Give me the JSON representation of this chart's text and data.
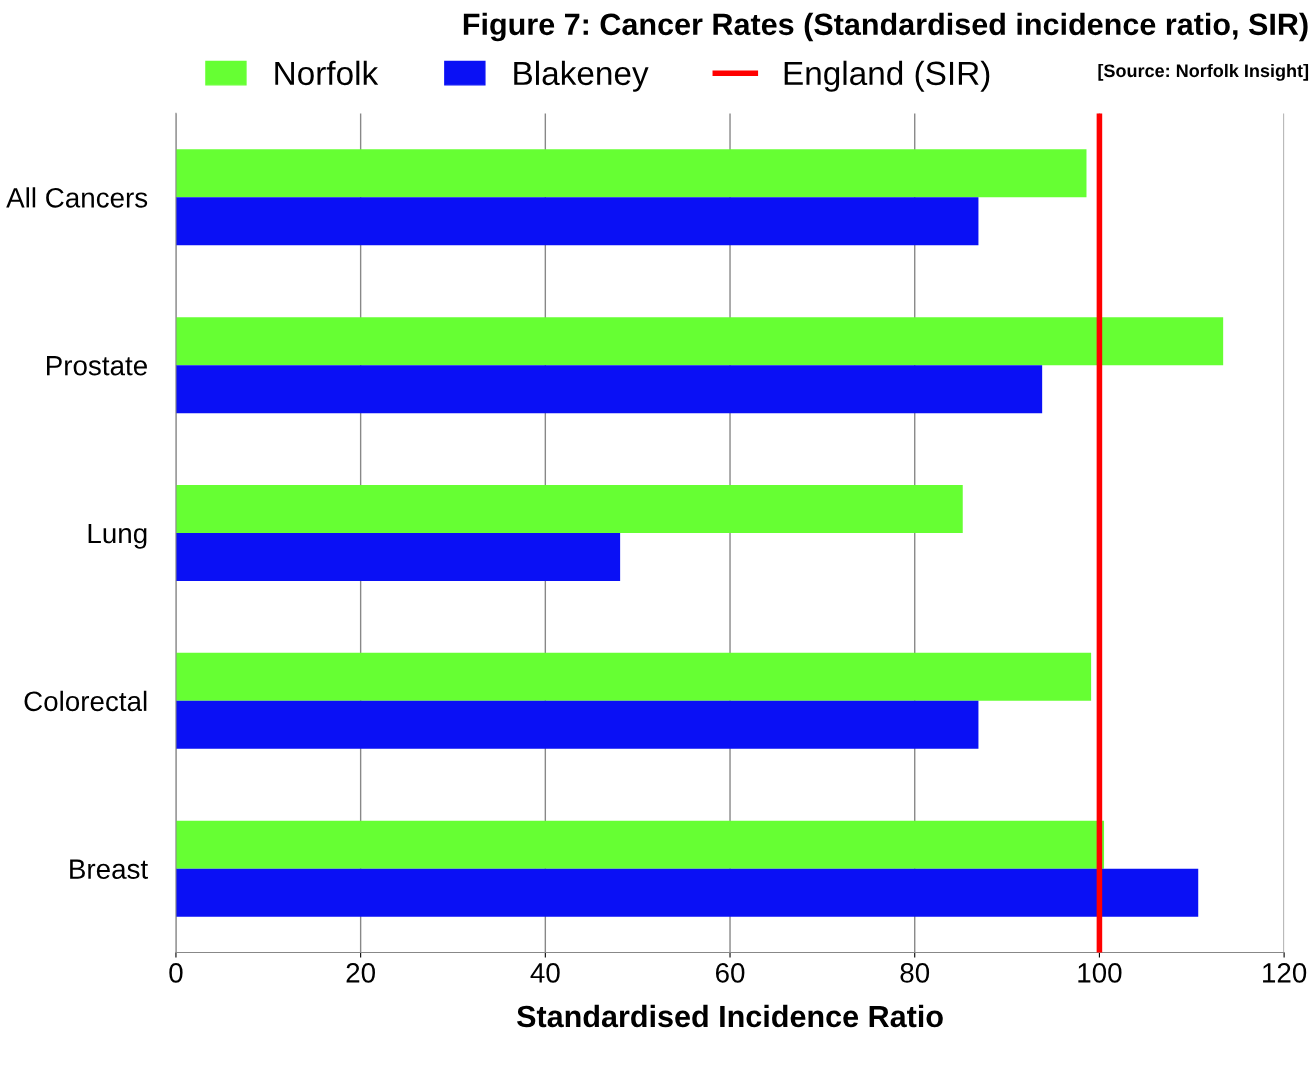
{
  "chart_data": {
    "type": "bar",
    "orientation": "horizontal",
    "title": "Figure 7: Cancer Rates (Standardised incidence ratio, SIR)",
    "annotations": [
      "[Source: Norfolk Insight]"
    ],
    "xlabel": "Standardised Incidence Ratio",
    "categories": [
      "All Cancers",
      "Prostate",
      "Lung",
      "Colorectal",
      "Breast"
    ],
    "series": [
      {
        "name": "Norfolk",
        "color": "#66ff33",
        "values": [
          98.6,
          113.4,
          85.2,
          99.1,
          100.5
        ]
      },
      {
        "name": "Blakeney",
        "color": "#0a10f5",
        "values": [
          86.9,
          93.8,
          48.1,
          86.9,
          110.7
        ]
      }
    ],
    "ref_lines": [
      {
        "axis": "x",
        "value": 100,
        "label": "England (SIR)",
        "color": "#ff0000"
      }
    ],
    "xlim": [
      0,
      120
    ],
    "xticks": [
      0,
      20,
      40,
      60,
      80,
      100,
      120
    ],
    "grid": "x",
    "legend": "top"
  }
}
